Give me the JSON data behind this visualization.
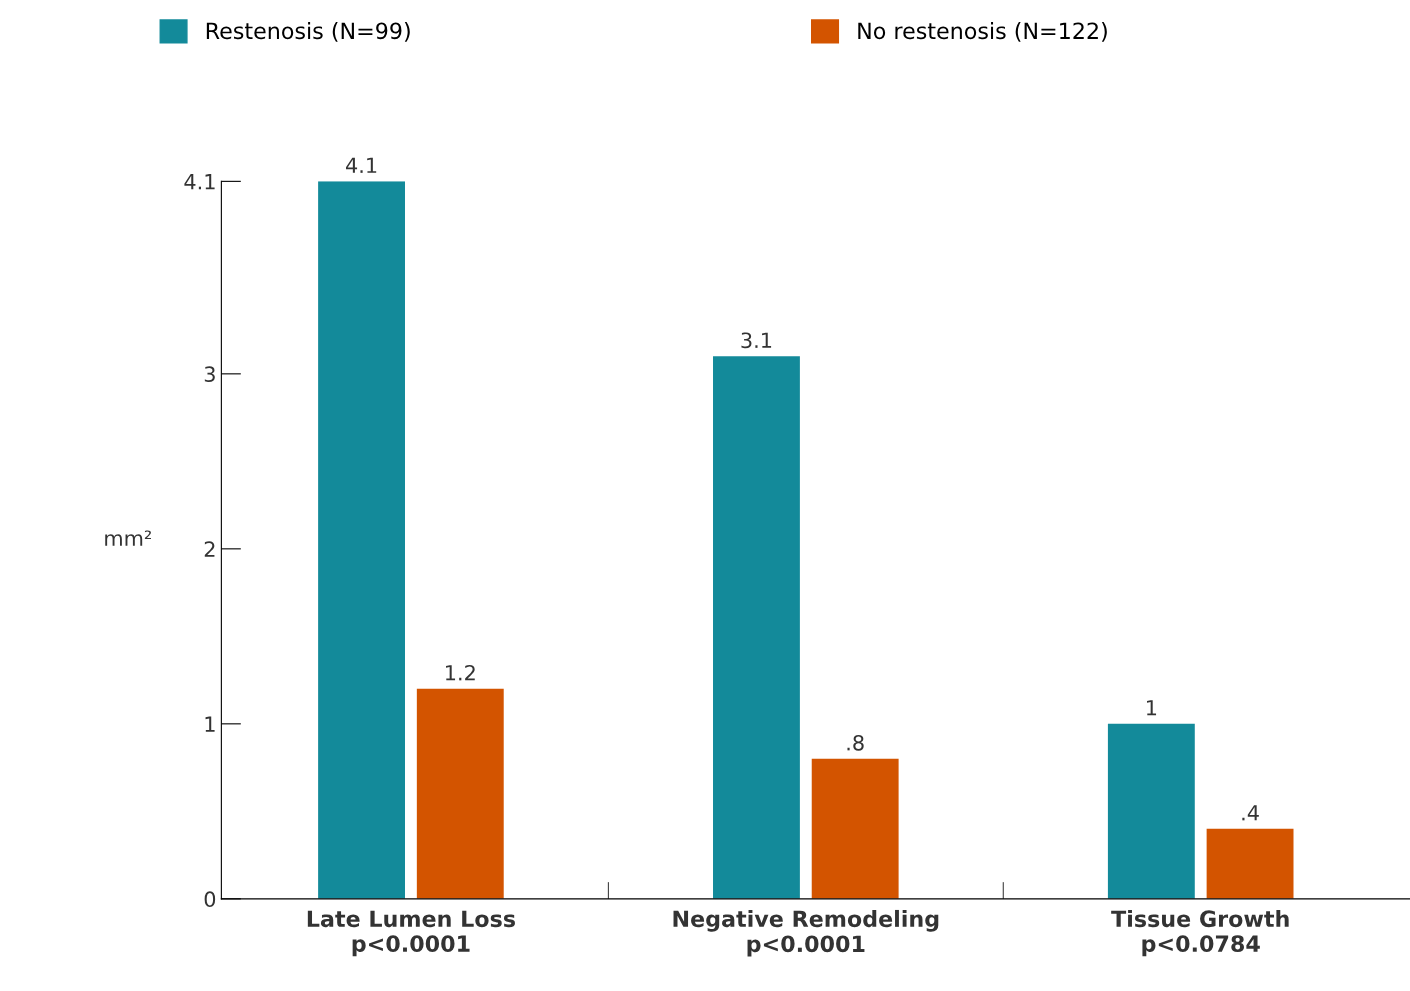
{
  "chart_data": {
    "type": "bar",
    "ylabel": "mm²",
    "categories": [
      "Late Lumen Loss\np<0.0001",
      "Negative Remodeling\np<0.0001",
      "Tissue Growth\np<0.0784"
    ],
    "series": [
      {
        "name": "Restenosis (N=99)",
        "color": "#138a9a",
        "values": [
          4.1,
          3.1,
          1
        ],
        "value_labels": [
          "4.1",
          "3.1",
          "1"
        ]
      },
      {
        "name": "No restenosis (N=122)",
        "color": "#d35400",
        "values": [
          1.2,
          0.8,
          0.4
        ],
        "value_labels": [
          "1.2",
          ".8",
          ".4"
        ]
      }
    ],
    "ylim": [
      0,
      4.1
    ],
    "yticks": [
      0,
      1,
      2,
      3,
      4.1
    ],
    "grid": false,
    "legend": "top"
  }
}
